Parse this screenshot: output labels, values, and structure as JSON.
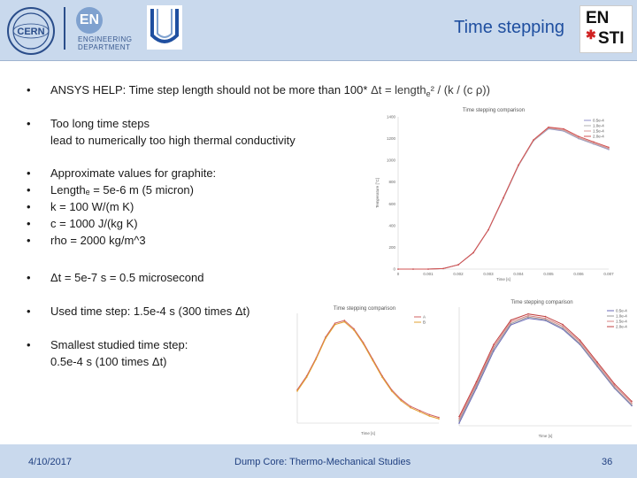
{
  "header": {
    "title": "Time stepping",
    "en_badge": "EN",
    "en_text_line1": "ENGINEERING",
    "en_text_line2": "DEPARTMENT",
    "cern_logo_text": "CERN",
    "ensti_top": "EN",
    "ensti_bottom": "STI"
  },
  "bullets": [
    {
      "text": "ANSYS HELP: Time step length should not be more than 100*",
      "formula": "Δt = length",
      "formula_sub": "e",
      "formula_rest": "² / (k / (c ρ))"
    },
    {
      "line1": "Too long time steps",
      "line2": "lead to numerically too high thermal conductivity"
    },
    {
      "items": [
        "Approximate values for graphite:",
        "Lengthₑ = 5e-6 m (5 micron)",
        "k = 100 W/(m K)",
        "c = 1000 J/(kg K)",
        "rho = 2000 kg/m^3"
      ]
    },
    {
      "text": "Δt = 5e-7 s = 0.5 microsecond"
    },
    {
      "text": "Used time step: 1.5e-4 s (300 times Δt)"
    },
    {
      "line1": "Smallest studied time step:",
      "line2": "0.5e-4 s (100 times Δt)"
    }
  ],
  "footer": {
    "date": "4/10/2017",
    "center": "Dump Core: Thermo-Mechanical Studies",
    "page": "36"
  },
  "chart_data": [
    {
      "type": "line",
      "title": "Time stepping comparison",
      "xlabel": "Time [s]",
      "ylabel": "Temperature [°C]",
      "x": [
        0,
        0.0005,
        0.001,
        0.0015,
        0.002,
        0.0025,
        0.003,
        0.0035,
        0.004,
        0.0045,
        0.005,
        0.0055,
        0.006,
        0.0065,
        0.007
      ],
      "ylim": [
        0,
        1400
      ],
      "xlim": [
        0,
        0.007
      ],
      "series": [
        {
          "name": "0.5e-4",
          "color": "#8f8fc8",
          "values": [
            0,
            0,
            0,
            5,
            40,
            150,
            360,
            650,
            950,
            1180,
            1290,
            1270,
            1200,
            1150,
            1100
          ]
        },
        {
          "name": "1.0e-4",
          "color": "#b0b0b0",
          "values": [
            0,
            0,
            0,
            5,
            40,
            150,
            360,
            650,
            950,
            1180,
            1295,
            1275,
            1205,
            1155,
            1105
          ]
        },
        {
          "name": "1.5e-4",
          "color": "#d89a9a",
          "values": [
            0,
            0,
            0,
            5,
            40,
            150,
            360,
            655,
            955,
            1185,
            1300,
            1280,
            1210,
            1160,
            1110
          ]
        },
        {
          "name": "2.0e-4",
          "color": "#d05050",
          "values": [
            0,
            0,
            0,
            5,
            40,
            152,
            362,
            658,
            958,
            1188,
            1305,
            1290,
            1220,
            1170,
            1120
          ]
        }
      ],
      "x_ticks": [
        "0",
        "0.001",
        "0.002",
        "0.003",
        "0.004",
        "0.005",
        "0.006",
        "0.007"
      ],
      "y_ticks": [
        "0",
        "200",
        "400",
        "600",
        "800",
        "1000",
        "1200",
        "1400"
      ],
      "legend": "top-right",
      "grid": false
    },
    {
      "type": "line",
      "title": "Time stepping comparison",
      "xlabel": "Time [s]",
      "ylabel": "",
      "x": [
        0.002,
        0.0022,
        0.0024,
        0.0026,
        0.0028,
        0.003,
        0.0032,
        0.0034,
        0.0036,
        0.0038,
        0.004,
        0.0042,
        0.0044,
        0.0046,
        0.0048,
        0.005
      ],
      "series": [
        {
          "name": "A",
          "color": "#d06060",
          "values": [
            52,
            62,
            75,
            90,
            100,
            102,
            96,
            86,
            74,
            62,
            52,
            45,
            40,
            37,
            34,
            32
          ]
        },
        {
          "name": "B",
          "color": "#e2a030",
          "values": [
            51,
            61,
            74,
            89,
            99,
            101,
            95,
            85,
            73,
            61,
            51,
            44,
            39,
            36,
            33,
            31
          ]
        }
      ],
      "legend": "top-right",
      "grid": false
    },
    {
      "type": "line",
      "title": "Time stepping comparison",
      "xlabel": "Time [s]",
      "ylabel": "",
      "x": [
        8e-05,
        0.00012,
        0.00016,
        0.0002,
        0.00024,
        0.00028,
        0.00032,
        0.00036,
        0.0004,
        0.00044,
        0.00048
      ],
      "series": [
        {
          "name": "0.5e-4",
          "color": "#6a6ab8",
          "values": [
            60,
            140,
            225,
            285,
            300,
            295,
            275,
            240,
            190,
            140,
            100
          ]
        },
        {
          "name": "1.0e-4",
          "color": "#999999",
          "values": [
            65,
            145,
            230,
            288,
            303,
            297,
            278,
            242,
            192,
            142,
            102
          ]
        },
        {
          "name": "1.5e-4",
          "color": "#d88080",
          "values": [
            70,
            150,
            235,
            292,
            306,
            300,
            282,
            246,
            196,
            146,
            106
          ]
        },
        {
          "name": "2.0e-4",
          "color": "#c04040",
          "values": [
            75,
            155,
            240,
            296,
            310,
            304,
            286,
            250,
            200,
            150,
            110
          ]
        }
      ],
      "legend": "top-right",
      "grid": false
    }
  ]
}
